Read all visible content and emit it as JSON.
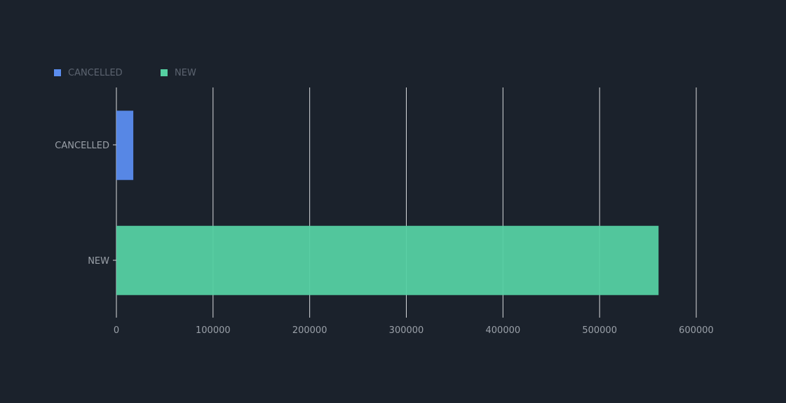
{
  "chart_data": {
    "type": "bar",
    "orientation": "horizontal",
    "categories": [
      "CANCELLED",
      "NEW"
    ],
    "series": [
      {
        "name": "CANCELLED",
        "category": "CANCELLED",
        "value": 17500,
        "color": "#5b8def"
      },
      {
        "name": "NEW",
        "category": "NEW",
        "value": 561000,
        "color": "#55d0a2"
      }
    ],
    "x_ticks": [
      "0",
      "100000",
      "200000",
      "300000",
      "400000",
      "500000",
      "600000"
    ],
    "xlim": [
      0,
      600000
    ],
    "grid": true,
    "legend_position": "top-left",
    "background": "#1b222c"
  }
}
